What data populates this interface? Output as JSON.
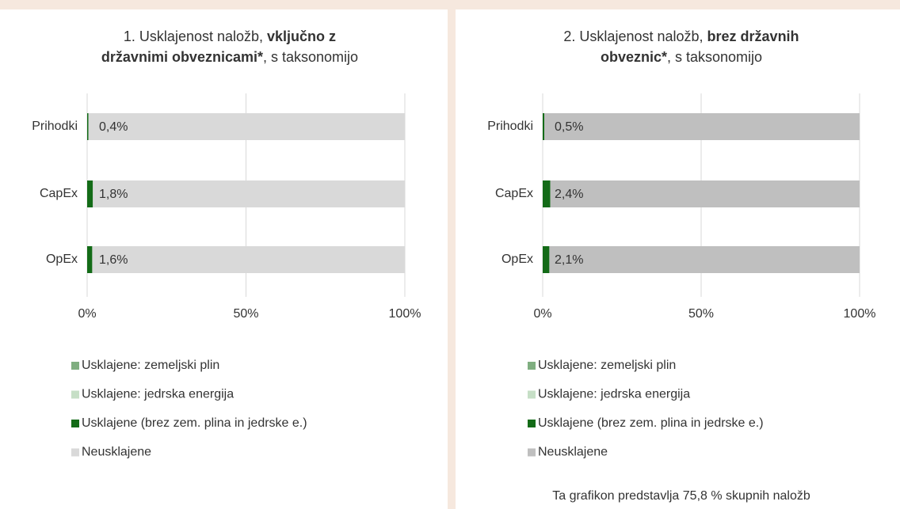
{
  "chart_data": [
    {
      "type": "stacked_barh",
      "title": [
        [
          {
            "text": "1. Usklajenost naložb, ",
            "bold": false
          },
          {
            "text": "vključno z",
            "bold": true
          }
        ],
        [
          {
            "text": "državnimi obveznicami*",
            "bold": true
          },
          {
            "text": ", s taksonomijo",
            "bold": false
          }
        ]
      ],
      "categories": [
        "Prihodki",
        "CapEx",
        "OpEx"
      ],
      "series": [
        {
          "name": "Usklajene: zemeljski plin",
          "color": "#7fae80",
          "values": [
            0,
            0,
            0
          ]
        },
        {
          "name": "Usklajene: jedrska energija",
          "color": "#c6dfc6",
          "values": [
            0,
            0,
            0
          ]
        },
        {
          "name": "Usklajene (brez zem. plina in jedrske e.)",
          "color": "#136b17",
          "values": [
            0.4,
            1.8,
            1.6
          ],
          "value_labels": [
            "0,4%",
            "1,8%",
            "1,6%"
          ]
        },
        {
          "name": "Neusklajene",
          "color": "#d9d9d9",
          "values": [
            99.6,
            98.2,
            98.4
          ]
        }
      ],
      "xlim": [
        0,
        100
      ],
      "xticks": [
        {
          "value": 0,
          "label": "0%"
        },
        {
          "value": 50,
          "label": "50%"
        },
        {
          "value": 100,
          "label": "100%"
        }
      ],
      "grid": true
    },
    {
      "type": "stacked_barh",
      "title": [
        [
          {
            "text": "2. Usklajenost naložb, ",
            "bold": false
          },
          {
            "text": "brez državnih",
            "bold": true
          }
        ],
        [
          {
            "text": "obveznic*",
            "bold": true
          },
          {
            "text": ", s taksonomijo",
            "bold": false
          }
        ]
      ],
      "categories": [
        "Prihodki",
        "CapEx",
        "OpEx"
      ],
      "series": [
        {
          "name": "Usklajene: zemeljski plin",
          "color": "#7fae80",
          "values": [
            0,
            0,
            0
          ]
        },
        {
          "name": "Usklajene: jedrska energija",
          "color": "#c6dfc6",
          "values": [
            0,
            0,
            0
          ]
        },
        {
          "name": "Usklajene (brez zem. plina in jedrske e.)",
          "color": "#136b17",
          "values": [
            0.5,
            2.4,
            2.1
          ],
          "value_labels": [
            "0,5%",
            "2,4%",
            "2,1%"
          ]
        },
        {
          "name": "Neusklajene",
          "color": "#bfbfbf",
          "values": [
            99.5,
            97.6,
            97.9
          ]
        }
      ],
      "xlim": [
        0,
        100
      ],
      "xticks": [
        {
          "value": 0,
          "label": "0%"
        },
        {
          "value": 50,
          "label": "50%"
        },
        {
          "value": 100,
          "label": "100%"
        }
      ],
      "grid": true,
      "annotation": "Ta grafikon predstavlja 75,8 % skupnih naložb"
    }
  ]
}
